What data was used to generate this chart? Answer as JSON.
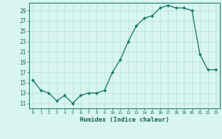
{
  "x": [
    0,
    1,
    2,
    3,
    4,
    5,
    6,
    7,
    8,
    9,
    10,
    11,
    12,
    13,
    14,
    15,
    16,
    17,
    18,
    19,
    20,
    21,
    22,
    23
  ],
  "y": [
    15.5,
    13.5,
    13.0,
    11.5,
    12.5,
    11.0,
    12.5,
    13.0,
    13.0,
    13.5,
    17.0,
    19.5,
    23.0,
    26.0,
    27.5,
    28.0,
    29.5,
    30.0,
    29.5,
    29.5,
    29.0,
    20.5,
    17.5,
    17.5
  ],
  "xlabel": "Humidex (Indice chaleur)",
  "ylabel": "",
  "xlim": [
    -0.5,
    23.5
  ],
  "ylim": [
    10.0,
    30.5
  ],
  "yticks": [
    11,
    13,
    15,
    17,
    19,
    21,
    23,
    25,
    27,
    29
  ],
  "xticks": [
    0,
    1,
    2,
    3,
    4,
    5,
    6,
    7,
    8,
    9,
    10,
    11,
    12,
    13,
    14,
    15,
    16,
    17,
    18,
    19,
    20,
    21,
    22,
    23
  ],
  "line_color": "#1a7a6e",
  "marker_color": "#1a7a6e",
  "bg_color": "#d8f5f0",
  "grid_color": "#b8ddd8",
  "axis_label_color": "#1a5f5a",
  "tick_label_color": "#1a5f5a"
}
